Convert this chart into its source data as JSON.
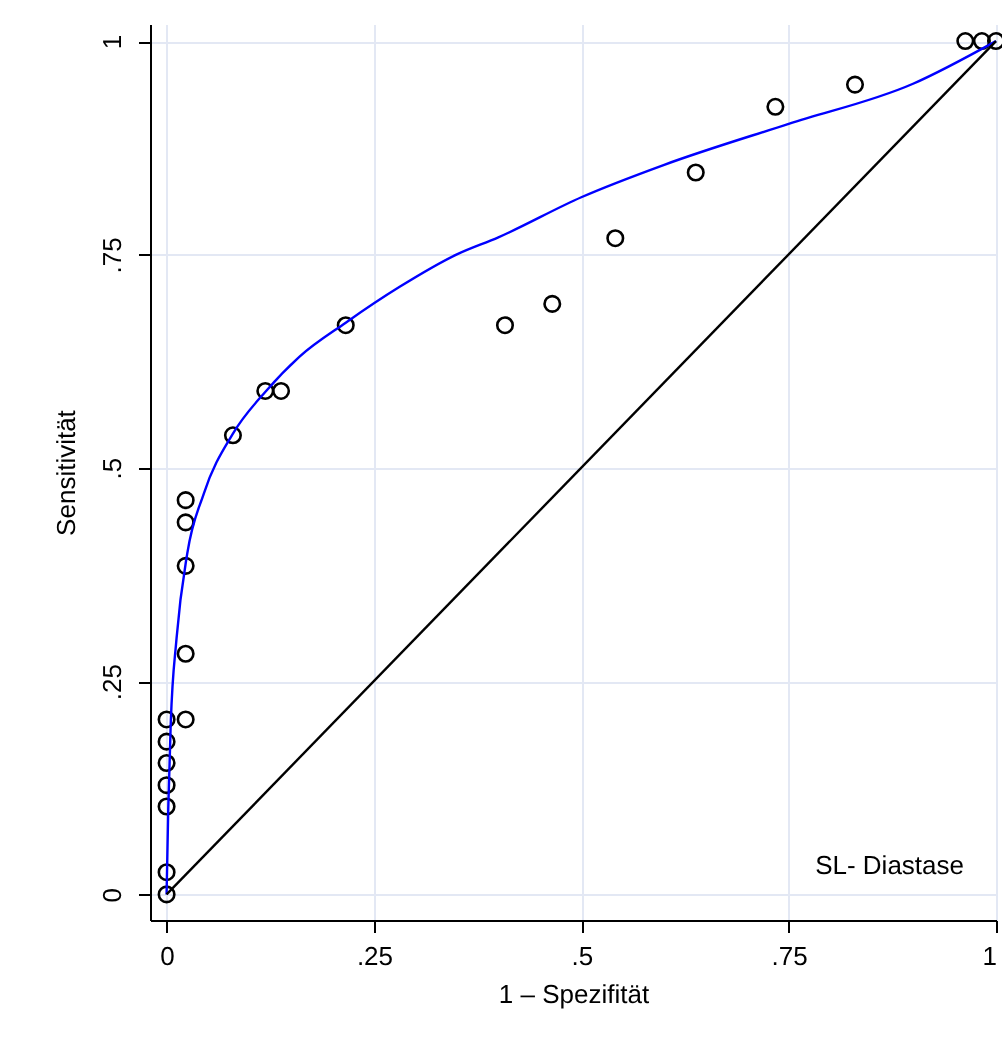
{
  "chart_data": {
    "type": "scatter",
    "xlabel": "1 – Spezifität",
    "ylabel": "Sensitivität",
    "annotations": [
      "SL- Diastase"
    ],
    "xlim": [
      -0.02,
      1
    ],
    "ylim": [
      -0.03,
      1.02
    ],
    "xticks": [
      0,
      {
        "value": 0.25,
        "label": ".25"
      },
      {
        "value": 0.5,
        "label": ".5"
      },
      {
        "value": 0.75,
        "label": ".75"
      },
      1
    ],
    "yticks": [
      0,
      {
        "value": 0.25,
        "label": ".25"
      },
      {
        "value": 0.5,
        "label": ".5"
      },
      {
        "value": 0.75,
        "label": ".75"
      },
      1
    ],
    "grid": true,
    "series": [
      {
        "color": "#000000",
        "marker": "circle",
        "x": [
          0,
          0,
          0,
          0,
          0,
          0,
          0,
          0.023,
          0.023,
          0.023,
          0.023,
          0.023,
          0.08,
          0.119,
          0.138,
          0.216,
          0.408,
          0.465,
          0.541,
          0.638,
          0.734,
          0.83,
          0.963,
          0.983,
          1
        ],
        "values": [
          0,
          0.026,
          0.103,
          0.128,
          0.154,
          0.179,
          0.205,
          0.205,
          0.282,
          0.385,
          0.436,
          0.462,
          0.538,
          0.59,
          0.59,
          0.667,
          0.667,
          0.692,
          0.769,
          0.846,
          0.923,
          0.949,
          1,
          1,
          1
        ]
      },
      {
        "type": "line",
        "color": "#0000ff",
        "x": [
          0,
          0.002,
          0.005,
          0.012,
          0.025,
          0.045,
          0.08,
          0.12,
          0.16,
          0.216,
          0.281,
          0.35,
          0.4,
          0.5,
          0.6,
          0.75,
          0.9,
          1
        ],
        "values": [
          0,
          0.1,
          0.2,
          0.3,
          0.4,
          0.47,
          0.54,
          0.59,
          0.63,
          0.67,
          0.712,
          0.75,
          0.77,
          0.817,
          0.855,
          0.903,
          0.95,
          1
        ]
      },
      {
        "type": "line",
        "color": "#000000",
        "x": [
          0,
          1
        ],
        "values": [
          0,
          1
        ]
      }
    ]
  }
}
